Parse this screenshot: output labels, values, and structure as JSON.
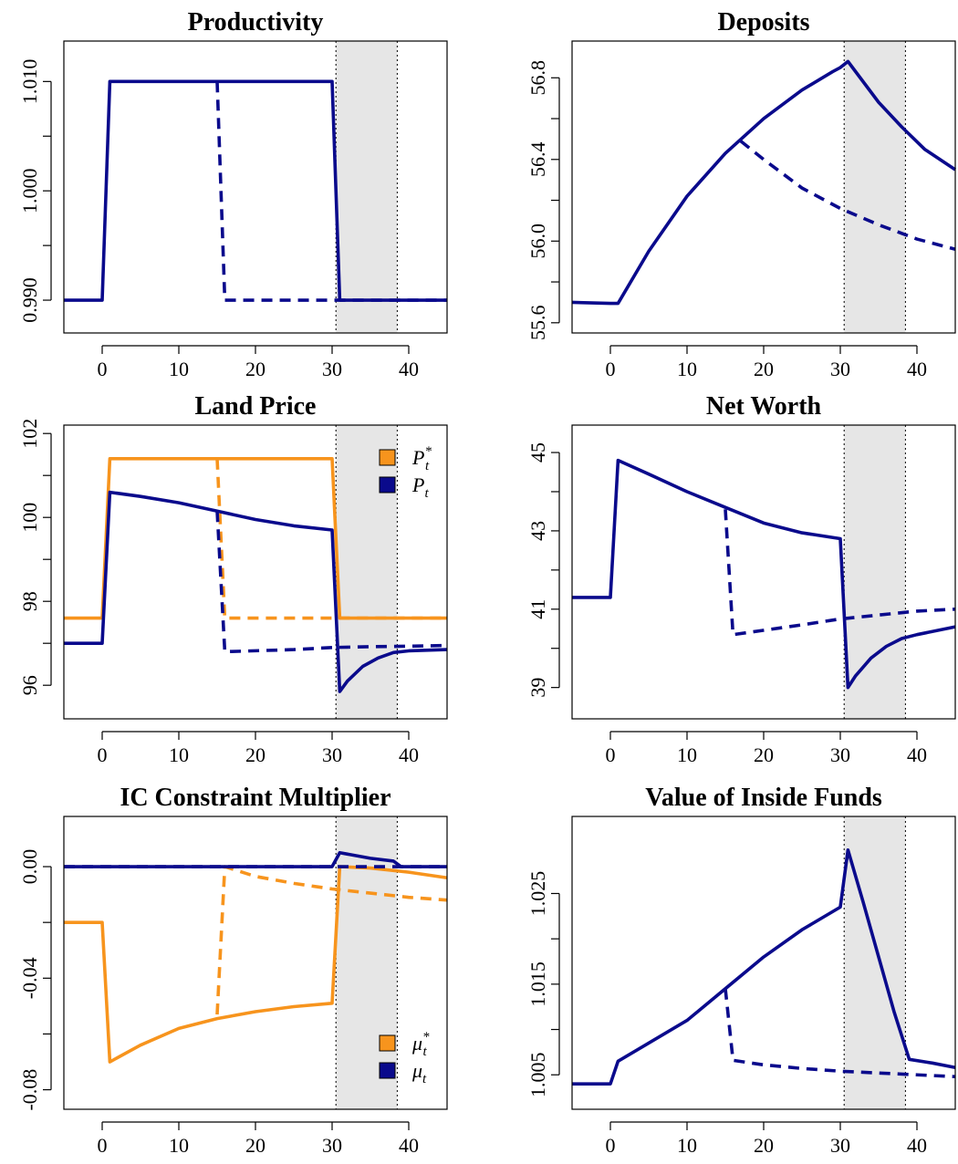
{
  "colors": {
    "p_star": "#F7941D",
    "p": "#0A0A8C",
    "shade": "#E6E6E6",
    "axis": "#000000"
  },
  "chart_data": [
    {
      "type": "line",
      "title": "Productivity",
      "xlim": [
        -5,
        45
      ],
      "ylim": [
        0.987,
        1.0137
      ],
      "xticks": [
        0,
        10,
        20,
        30,
        40
      ],
      "xtick_labels": [
        "0",
        "10",
        "20",
        "30",
        "40"
      ],
      "yticks": [
        0.99,
        0.995,
        1.0,
        1.005,
        1.01
      ],
      "ytick_labels": [
        "0.990",
        "",
        "1.000",
        "",
        "1.010"
      ],
      "shade": [
        30.5,
        38.5
      ],
      "series": [
        {
          "color": "p",
          "style": "solid",
          "x": [
            -5,
            0,
            1,
            30,
            31,
            45
          ],
          "y": [
            0.99,
            0.99,
            1.01,
            1.01,
            0.99,
            0.99
          ]
        },
        {
          "color": "p",
          "style": "dashed",
          "x": [
            15,
            16,
            45
          ],
          "y": [
            1.01,
            0.99,
            0.99
          ]
        }
      ]
    },
    {
      "type": "line",
      "title": "Deposits",
      "xlim": [
        -5,
        45
      ],
      "ylim": [
        55.55,
        56.98
      ],
      "xticks": [
        0,
        10,
        20,
        30,
        40
      ],
      "xtick_labels": [
        "0",
        "10",
        "20",
        "30",
        "40"
      ],
      "yticks": [
        55.6,
        55.8,
        56.0,
        56.2,
        56.4,
        56.6,
        56.8
      ],
      "ytick_labels": [
        "55.6",
        "",
        "56.0",
        "",
        "56.4",
        "",
        "56.8"
      ],
      "shade": [
        30.5,
        38.5
      ],
      "series": [
        {
          "color": "p",
          "style": "solid",
          "x": [
            -5,
            0,
            1,
            5,
            10,
            15,
            20,
            25,
            29,
            30,
            31,
            33,
            35,
            38,
            41,
            45
          ],
          "y": [
            55.7,
            55.695,
            55.695,
            55.95,
            56.22,
            56.43,
            56.6,
            56.74,
            56.83,
            56.85,
            56.88,
            56.78,
            56.68,
            56.56,
            56.45,
            56.35
          ]
        },
        {
          "color": "p",
          "style": "dashed",
          "x": [
            17,
            20,
            25,
            30,
            35,
            40,
            45
          ],
          "y": [
            56.49,
            56.4,
            56.26,
            56.16,
            56.08,
            56.01,
            55.96
          ]
        }
      ]
    },
    {
      "type": "line",
      "title": "Land Price",
      "xlim": [
        -5,
        45
      ],
      "ylim": [
        95.2,
        102.2
      ],
      "xticks": [
        0,
        10,
        20,
        30,
        40
      ],
      "xtick_labels": [
        "0",
        "10",
        "20",
        "30",
        "40"
      ],
      "yticks": [
        96,
        97,
        98,
        99,
        100,
        101,
        102
      ],
      "ytick_labels": [
        "96",
        "",
        "98",
        "",
        "100",
        "",
        "102"
      ],
      "shade": [
        30.5,
        38.5
      ],
      "legend": {
        "position": "top-right",
        "entries": [
          {
            "color": "p_star",
            "base": "P",
            "sup": "*",
            "sub": "t"
          },
          {
            "color": "p",
            "base": "P",
            "sup": "",
            "sub": "t"
          }
        ]
      },
      "series": [
        {
          "color": "p_star",
          "style": "solid",
          "x": [
            -5,
            0,
            1,
            30,
            31,
            45
          ],
          "y": [
            97.6,
            97.6,
            101.4,
            101.4,
            97.6,
            97.6
          ]
        },
        {
          "color": "p_star",
          "style": "dashed",
          "x": [
            15,
            16,
            45
          ],
          "y": [
            101.4,
            97.6,
            97.6
          ]
        },
        {
          "color": "p",
          "style": "solid",
          "x": [
            -5,
            0,
            1,
            5,
            10,
            15,
            20,
            25,
            30,
            31,
            32,
            34,
            36,
            38,
            40,
            45
          ],
          "y": [
            97.0,
            97.0,
            100.6,
            100.5,
            100.35,
            100.15,
            99.95,
            99.8,
            99.7,
            95.85,
            96.1,
            96.45,
            96.65,
            96.78,
            96.82,
            96.85
          ]
        },
        {
          "color": "p",
          "style": "dashed",
          "x": [
            15,
            16,
            25,
            30,
            35,
            40,
            45
          ],
          "y": [
            100.15,
            96.8,
            96.85,
            96.9,
            96.92,
            96.93,
            96.95
          ]
        }
      ]
    },
    {
      "type": "line",
      "title": "Net Worth",
      "xlim": [
        -5,
        45
      ],
      "ylim": [
        38.2,
        45.7
      ],
      "xticks": [
        0,
        10,
        20,
        30,
        40
      ],
      "xtick_labels": [
        "0",
        "10",
        "20",
        "30",
        "40"
      ],
      "yticks": [
        39,
        40,
        41,
        42,
        43,
        44,
        45
      ],
      "ytick_labels": [
        "39",
        "",
        "41",
        "",
        "43",
        "",
        "45"
      ],
      "shade": [
        30.5,
        38.5
      ],
      "series": [
        {
          "color": "p",
          "style": "solid",
          "x": [
            -5,
            0,
            1,
            5,
            10,
            15,
            20,
            25,
            30,
            31,
            32,
            34,
            36,
            38,
            40,
            45
          ],
          "y": [
            41.3,
            41.3,
            44.8,
            44.45,
            44.0,
            43.6,
            43.2,
            42.95,
            42.8,
            39.0,
            39.3,
            39.75,
            40.05,
            40.25,
            40.35,
            40.55
          ]
        },
        {
          "color": "p",
          "style": "dashed",
          "x": [
            15,
            16,
            25,
            30,
            35,
            40,
            45
          ],
          "y": [
            43.55,
            40.35,
            40.6,
            40.75,
            40.85,
            40.95,
            41.0
          ]
        }
      ]
    },
    {
      "type": "line",
      "title": "IC Constraint Multiplier",
      "xlim": [
        -5,
        45
      ],
      "ylim": [
        -0.087,
        0.018
      ],
      "xticks": [
        0,
        10,
        20,
        30,
        40
      ],
      "xtick_labels": [
        "0",
        "10",
        "20",
        "30",
        "40"
      ],
      "yticks": [
        -0.08,
        -0.06,
        -0.04,
        -0.02,
        0.0
      ],
      "ytick_labels": [
        "-0.08",
        "",
        "-0.04",
        "",
        "0.00"
      ],
      "shade": [
        30.5,
        38.5
      ],
      "legend": {
        "position": "bottom-right",
        "entries": [
          {
            "color": "p_star",
            "base": "μ",
            "sup": "*",
            "sub": "t"
          },
          {
            "color": "p",
            "base": "μ",
            "sup": "",
            "sub": "t"
          }
        ]
      },
      "series": [
        {
          "color": "p_star",
          "style": "solid",
          "x": [
            -5,
            0,
            1,
            5,
            10,
            15,
            20,
            25,
            30,
            31,
            35,
            40,
            45
          ],
          "y": [
            -0.02,
            -0.02,
            -0.07,
            -0.064,
            -0.058,
            -0.0545,
            -0.052,
            -0.0502,
            -0.049,
            0.0,
            -0.0005,
            -0.002,
            -0.004
          ]
        },
        {
          "color": "p_star",
          "style": "dashed",
          "x": [
            15,
            16,
            20,
            25,
            30,
            35,
            40,
            45
          ],
          "y": [
            -0.053,
            0.0,
            -0.0035,
            -0.006,
            -0.008,
            -0.0095,
            -0.011,
            -0.012
          ]
        },
        {
          "color": "p",
          "style": "solid",
          "x": [
            -5,
            30,
            31,
            35,
            38,
            39,
            45
          ],
          "y": [
            0.0,
            0.0,
            0.005,
            0.003,
            0.002,
            0.0,
            0.0
          ]
        },
        {
          "color": "p",
          "style": "dashed",
          "x": [
            -5,
            45
          ],
          "y": [
            0.0,
            0.0
          ]
        }
      ]
    },
    {
      "type": "line",
      "title": "Value of Inside Funds",
      "xlim": [
        -5,
        45
      ],
      "ylim": [
        1.0012,
        1.0335
      ],
      "xticks": [
        0,
        10,
        20,
        30,
        40
      ],
      "xtick_labels": [
        "0",
        "10",
        "20",
        "30",
        "40"
      ],
      "yticks": [
        1.005,
        1.01,
        1.015,
        1.02,
        1.025
      ],
      "ytick_labels": [
        "1.005",
        "",
        "1.015",
        "",
        "1.025"
      ],
      "shade": [
        30.5,
        38.5
      ],
      "series": [
        {
          "color": "p",
          "style": "solid",
          "x": [
            -5,
            0,
            1,
            5,
            10,
            15,
            20,
            25,
            30,
            31,
            33,
            35,
            37,
            39,
            42,
            45
          ],
          "y": [
            1.004,
            1.004,
            1.0065,
            1.0085,
            1.011,
            1.0145,
            1.018,
            1.021,
            1.0235,
            1.0298,
            1.024,
            1.018,
            1.012,
            1.0067,
            1.0063,
            1.0058
          ]
        },
        {
          "color": "p",
          "style": "dashed",
          "x": [
            15,
            16,
            20,
            25,
            30,
            35,
            40,
            45
          ],
          "y": [
            1.0145,
            1.0066,
            1.0061,
            1.0057,
            1.0054,
            1.0052,
            1.005,
            1.0048
          ]
        }
      ]
    }
  ]
}
